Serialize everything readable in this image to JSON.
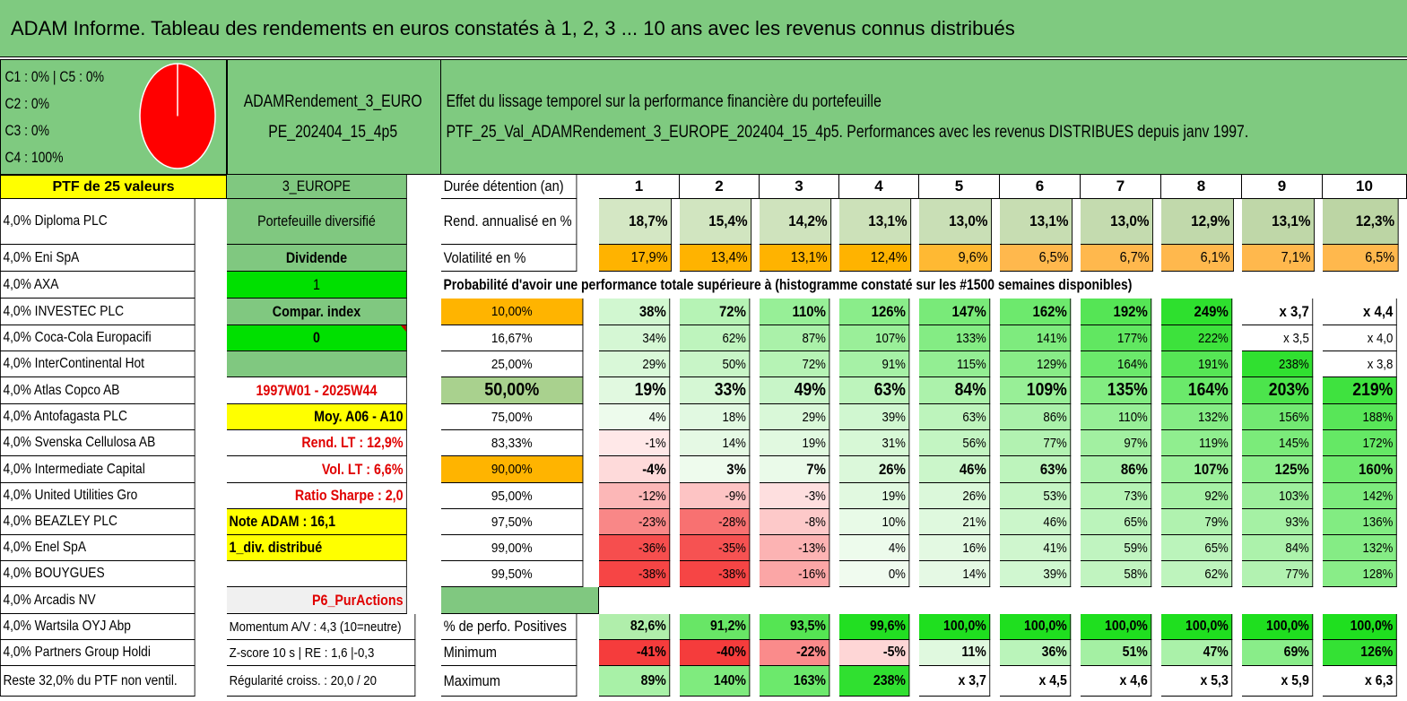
{
  "title": "ADAM Informe. Tableau des rendements en euros constatés à 1, 2, 3 ... 10 ans avec les revenus connus distribués",
  "colors": {
    "green": "#7fca80",
    "dark_green": "#80c880",
    "yellow": "#ffff00",
    "bright_green": "#00e000",
    "orange": "#ffb400",
    "olive_light": "#c6deb2",
    "red_text": "#e00000",
    "pie_red": "#ff0000",
    "light_gray": "#f0f0f0"
  },
  "pie": {
    "legend": [
      "C1 : 0% | C5 : 0%",
      "C2 : 0%",
      "C3 : 0%",
      "C4 : 100%"
    ],
    "c4_share": 100
  },
  "header": {
    "code_line1": "ADAMRendement_3_EURO",
    "code_line2": "PE_202404_15_4p5",
    "effect_line1": "Effet du lissage temporel sur la performance financière du portefeuille",
    "effect_line2": "PTF_25_Val_ADAMRendement_3_EUROPE_202404_15_4p5. Performances avec les revenus DISTRIBUES depuis janv 1997."
  },
  "left": {
    "ptf_label": "PTF de 25 valeurs",
    "holdings": [
      "4,0% Diploma PLC",
      "4,0% Eni SpA",
      "4,0% AXA",
      "4,0% INVESTEC PLC",
      "4,0% Coca-Cola Europacifi",
      "4,0% InterContinental Hot",
      "4,0% Atlas Copco AB",
      "4,0% Antofagasta PLC",
      "4,0% Svenska Cellulosa AB",
      "4,0% Intermediate Capital",
      "4,0% United Utilities Gro",
      "4,0% BEAZLEY PLC",
      "4,0% Enel SpA",
      "4,0% BOUYGUES",
      "4,0% Arcadis NV",
      "4,0% Wartsila OYJ Abp",
      "4,0% Partners Group Holdi",
      "Reste 32,0% du PTF non ventil."
    ]
  },
  "middle": {
    "zone": "3_EUROPE",
    "type": "Portefeuille diversifié",
    "dividend_label": "Dividende",
    "dividend_value": "1",
    "compar_label": "Compar. index",
    "compar_value": "0",
    "period": "1997W01 - 2025W44",
    "moy": "Moy. A06 - A10",
    "rend_lt": "Rend. LT : 12,9%",
    "vol_lt": "Vol. LT : 6,6%",
    "sharpe": "Ratio Sharpe : 2,0",
    "note": "Note ADAM : 16,1",
    "div_dist": "1_div. distribué",
    "p6": "P6_PurActions",
    "momentum": "Momentum A/V : 4,3 (10=neutre)",
    "zscore": "Z-score 10 s | RE : 1,6 |-0,3",
    "regularite": "Régularité croiss. : 20,0 / 20"
  },
  "table": {
    "duree_label": "Durée détention (an)",
    "years": [
      "1",
      "2",
      "3",
      "4",
      "5",
      "6",
      "7",
      "8",
      "9",
      "10"
    ],
    "rend_label": "Rend. annualisé en %",
    "rend": [
      "18,7%",
      "15,4%",
      "14,2%",
      "13,1%",
      "13,0%",
      "13,1%",
      "13,0%",
      "12,9%",
      "13,1%",
      "12,3%"
    ],
    "vol_label": "Volatilité en %",
    "vol": [
      "17,9%",
      "13,4%",
      "13,1%",
      "12,4%",
      "9,6%",
      "6,5%",
      "6,7%",
      "6,1%",
      "7,1%",
      "6,5%"
    ],
    "proba_title": "Probabilité d'avoir une performance totale supérieure à (histogramme constaté sur les #1500 semaines disponibles)",
    "proba_rows": [
      {
        "p": "10,00%",
        "v": [
          "38%",
          "72%",
          "110%",
          "126%",
          "147%",
          "162%",
          "192%",
          "249%",
          "x 3,7",
          "x 4,4"
        ]
      },
      {
        "p": "16,67%",
        "v": [
          "34%",
          "62%",
          "87%",
          "107%",
          "133%",
          "141%",
          "177%",
          "222%",
          "x 3,5",
          "x 4,0"
        ]
      },
      {
        "p": "25,00%",
        "v": [
          "29%",
          "50%",
          "72%",
          "91%",
          "115%",
          "129%",
          "164%",
          "191%",
          "238%",
          "x 3,8"
        ]
      },
      {
        "p": "50,00%",
        "v": [
          "19%",
          "33%",
          "49%",
          "63%",
          "84%",
          "109%",
          "135%",
          "164%",
          "203%",
          "219%"
        ]
      },
      {
        "p": "75,00%",
        "v": [
          "4%",
          "18%",
          "29%",
          "39%",
          "63%",
          "86%",
          "110%",
          "132%",
          "156%",
          "188%"
        ]
      },
      {
        "p": "83,33%",
        "v": [
          "-1%",
          "14%",
          "19%",
          "31%",
          "56%",
          "77%",
          "97%",
          "119%",
          "145%",
          "172%"
        ]
      },
      {
        "p": "90,00%",
        "v": [
          "-4%",
          "3%",
          "7%",
          "26%",
          "46%",
          "63%",
          "86%",
          "107%",
          "125%",
          "160%"
        ]
      },
      {
        "p": "95,00%",
        "v": [
          "-12%",
          "-9%",
          "-3%",
          "19%",
          "26%",
          "53%",
          "73%",
          "92%",
          "103%",
          "142%"
        ]
      },
      {
        "p": "97,50%",
        "v": [
          "-23%",
          "-28%",
          "-8%",
          "10%",
          "21%",
          "46%",
          "65%",
          "79%",
          "93%",
          "136%"
        ]
      },
      {
        "p": "99,00%",
        "v": [
          "-36%",
          "-35%",
          "-13%",
          "4%",
          "16%",
          "41%",
          "59%",
          "65%",
          "84%",
          "132%"
        ]
      },
      {
        "p": "99,50%",
        "v": [
          "-38%",
          "-38%",
          "-16%",
          "0%",
          "14%",
          "39%",
          "58%",
          "62%",
          "77%",
          "128%"
        ]
      }
    ],
    "pos_label": "% de perfo. Positives",
    "pos": [
      "82,6%",
      "91,2%",
      "93,5%",
      "99,6%",
      "100,0%",
      "100,0%",
      "100,0%",
      "100,0%",
      "100,0%",
      "100,0%"
    ],
    "min_label": "Minimum",
    "min": [
      "-41%",
      "-40%",
      "-22%",
      "-5%",
      "11%",
      "36%",
      "51%",
      "47%",
      "69%",
      "126%"
    ],
    "max_label": "Maximum",
    "max": [
      "89%",
      "140%",
      "163%",
      "238%",
      "x 3,7",
      "x 4,5",
      "x 4,6",
      "x 5,3",
      "x 5,9",
      "x 6,3"
    ]
  }
}
